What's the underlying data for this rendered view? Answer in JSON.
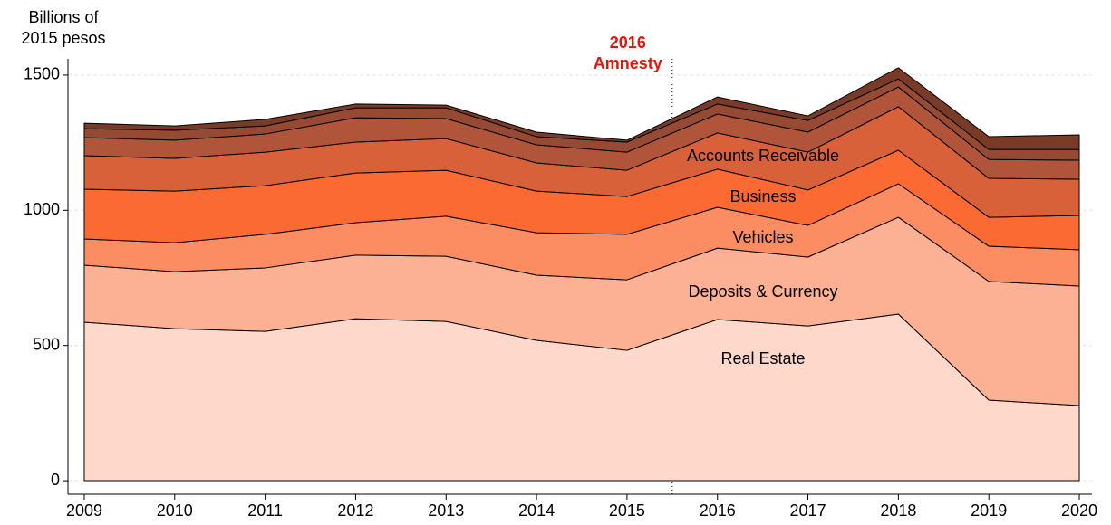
{
  "chart_data": {
    "type": "stacked-area",
    "y_label": [
      "Billions of",
      "2015 pesos"
    ],
    "annotation": {
      "text": [
        "2016",
        "Amnesty"
      ],
      "x": 2015.5,
      "color": "#e8140c"
    },
    "x": [
      2009,
      2010,
      2011,
      2012,
      2013,
      2014,
      2015,
      2016,
      2017,
      2018,
      2019,
      2020
    ],
    "xlim": [
      2008.82,
      2020.14
    ],
    "xticks": [
      2009,
      2010,
      2011,
      2012,
      2013,
      2014,
      2015,
      2016,
      2017,
      2018,
      2019,
      2020
    ],
    "ylim": [
      -50,
      1560
    ],
    "yticks": [
      0,
      500,
      1000,
      1500
    ],
    "grid": true,
    "series": [
      {
        "name": "Real Estate",
        "color": "#fed8cb",
        "values": [
          586,
          562,
          552,
          599,
          589,
          519,
          482,
          596,
          572,
          616,
          298,
          278
        ]
      },
      {
        "name": "Deposits & Currency",
        "color": "#fdb194",
        "values": [
          211,
          211,
          235,
          235,
          241,
          241,
          261,
          264,
          255,
          358,
          439,
          442
        ]
      },
      {
        "name": "Vehicles",
        "color": "#fc8d62",
        "values": [
          97,
          107,
          124,
          120,
          148,
          157,
          168,
          151,
          117,
          124,
          130,
          134
        ]
      },
      {
        "name": "Business",
        "color": "#fb6a33",
        "values": [
          184,
          191,
          180,
          184,
          170,
          154,
          140,
          141,
          131,
          124,
          107,
          127
        ]
      },
      {
        "name": "Accounts Receivable",
        "color": "#d8613a",
        "values": [
          124,
          121,
          124,
          114,
          117,
          104,
          97,
          134,
          140,
          161,
          144,
          134
        ]
      },
      {
        "color": "#b0553a",
        "values": [
          67,
          67,
          67,
          90,
          74,
          67,
          67,
          70,
          74,
          73,
          70,
          70
        ]
      },
      {
        "color": "#964a34",
        "values": [
          33,
          37,
          30,
          37,
          40,
          30,
          37,
          37,
          43,
          30,
          37,
          40
        ]
      },
      {
        "color": "#7a3a28",
        "values": [
          20,
          16,
          24,
          14,
          10,
          17,
          7,
          26,
          17,
          41,
          47,
          54
        ]
      }
    ]
  }
}
